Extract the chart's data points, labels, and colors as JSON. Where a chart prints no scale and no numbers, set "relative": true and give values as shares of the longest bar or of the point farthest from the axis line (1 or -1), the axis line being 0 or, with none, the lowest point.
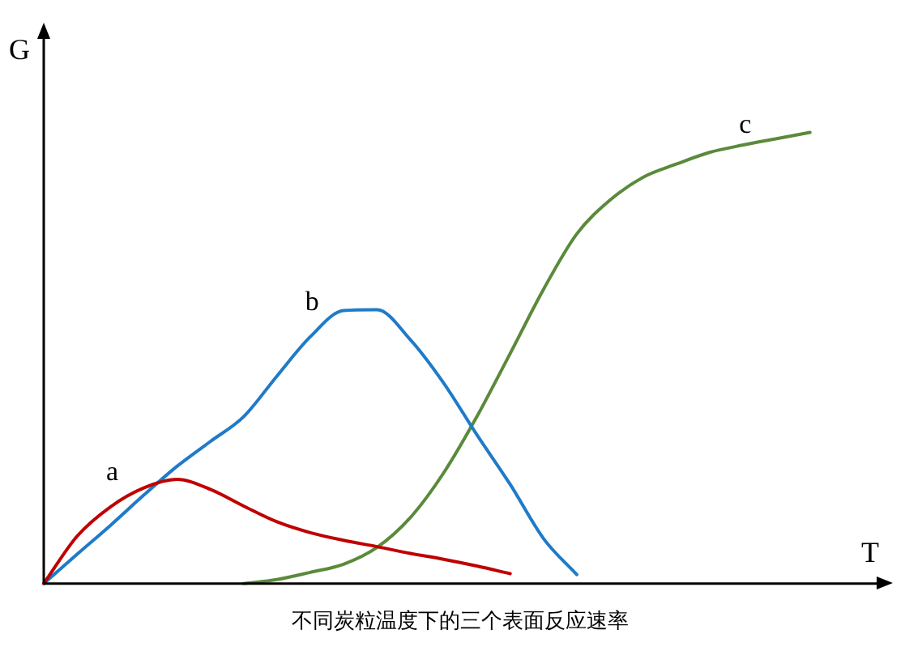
{
  "chart_data": {
    "type": "line",
    "title": "不同炭粒温度下的三个表面反应速率",
    "xlabel": "T",
    "ylabel": "G",
    "relative": true,
    "grid": false,
    "legend": false,
    "marker": "none",
    "line_style": "solid",
    "categories": [
      null,
      null,
      null,
      null,
      null,
      null,
      null,
      null,
      null,
      null,
      null,
      null,
      null,
      null,
      null,
      null,
      null,
      null,
      null,
      null,
      null,
      null,
      null,
      null,
      null,
      null
    ],
    "series": [
      {
        "name": "a",
        "color": "#c00000",
        "values": [
          0,
          0.105,
          0.17,
          0.212,
          0.231,
          0.209,
          0.172,
          0.137,
          0.113,
          0.096,
          0.082,
          0.067,
          0.054,
          0.039,
          0.022,
          null,
          null,
          null,
          null,
          null,
          null,
          null,
          null,
          null,
          null,
          null
        ]
      },
      {
        "name": "b",
        "color": "#1f7bc8",
        "values": [
          0,
          0.065,
          0.129,
          0.196,
          0.26,
          0.315,
          0.37,
          0.46,
          0.547,
          0.605,
          0.607,
          0.541,
          0.445,
          0.33,
          0.22,
          0.1,
          0.02,
          null,
          null,
          null,
          null,
          null,
          null,
          null,
          null,
          null
        ]
      },
      {
        "name": "c",
        "color": "#5a8a3a",
        "values": [
          null,
          null,
          null,
          null,
          null,
          null,
          0,
          0.009,
          0.025,
          0.043,
          0.08,
          0.146,
          0.245,
          0.37,
          0.51,
          0.652,
          0.775,
          0.85,
          0.901,
          0.93,
          0.956,
          0.972,
          0.986,
          1,
          null,
          null
        ]
      }
    ]
  }
}
